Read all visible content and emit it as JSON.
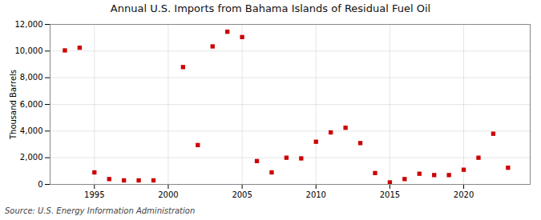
{
  "chart_data": {
    "type": "scatter",
    "title": "Annual U.S. Imports from Bahama Islands of Residual Fuel Oil",
    "ylabel": "Thousand Barrels",
    "annotation": "Source: U.S. Energy Information Administration",
    "x": [
      1993,
      1994,
      1995,
      1996,
      1997,
      1998,
      1999,
      2001,
      2002,
      2003,
      2004,
      2005,
      2006,
      2007,
      2008,
      2009,
      2010,
      2011,
      2012,
      2013,
      2014,
      2015,
      2016,
      2017,
      2018,
      2019,
      2020,
      2021,
      2022,
      2023
    ],
    "values": [
      10050,
      10250,
      900,
      400,
      300,
      300,
      300,
      8800,
      2950,
      10350,
      11450,
      11050,
      1750,
      900,
      2000,
      1950,
      3200,
      3900,
      4250,
      3100,
      850,
      150,
      400,
      800,
      700,
      700,
      1100,
      2000,
      3800,
      1250
    ],
    "color": "#cc0000",
    "marker": "square",
    "xlim": [
      1992,
      2024.5
    ],
    "ylim": [
      0,
      12000
    ],
    "xticks": [
      1995,
      2000,
      2005,
      2010,
      2015,
      2020
    ],
    "yticks": [
      0,
      {
        "value": 2000,
        "label": "2,000"
      },
      {
        "value": 4000,
        "label": "4,000"
      },
      {
        "value": 6000,
        "label": "6,000"
      },
      {
        "value": 8000,
        "label": "8,000"
      },
      {
        "value": 10000,
        "label": "10,000"
      },
      {
        "value": 12000,
        "label": "12,000"
      }
    ],
    "grid": true
  }
}
